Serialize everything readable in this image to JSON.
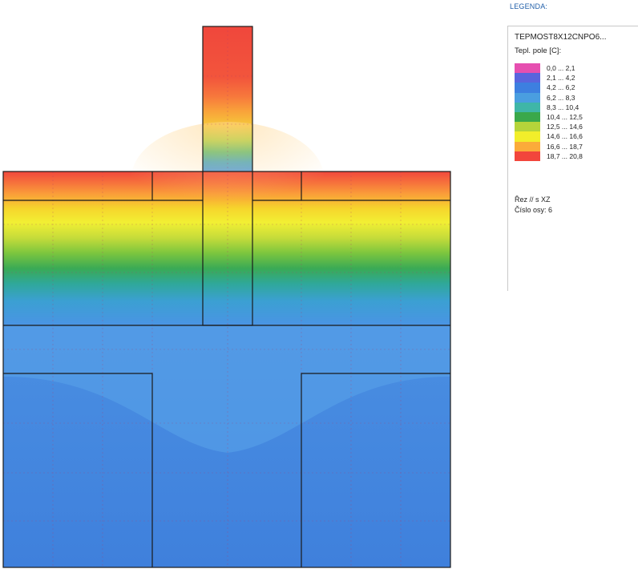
{
  "legend": {
    "caption": "LEGENDA:",
    "model_name": "TEPMOST8X12CNPO6...",
    "field_label": "Tepl. pole [C]:",
    "ranges": [
      {
        "label": "0,0 ... 2,1",
        "color": "#e64fb0"
      },
      {
        "label": "2,1 ... 4,2",
        "color": "#5a64dd"
      },
      {
        "label": "4,2 ... 6,2",
        "color": "#3d7fe0"
      },
      {
        "label": "6,2 ... 8,3",
        "color": "#4a9ee0"
      },
      {
        "label": "8,3 ... 10,4",
        "color": "#3fb6a8"
      },
      {
        "label": "10,4 ... 12,5",
        "color": "#3aa84a"
      },
      {
        "label": "12,5 ... 14,6",
        "color": "#b5d43a"
      },
      {
        "label": "14,6 ... 16,6",
        "color": "#f2ee2a"
      },
      {
        "label": "16,6 ... 18,7",
        "color": "#fbab3a"
      },
      {
        "label": "18,7 ... 20,8",
        "color": "#f2463c"
      }
    ],
    "section_label": "Řez // s XZ",
    "axis_label": "Číslo osy: 6"
  }
}
